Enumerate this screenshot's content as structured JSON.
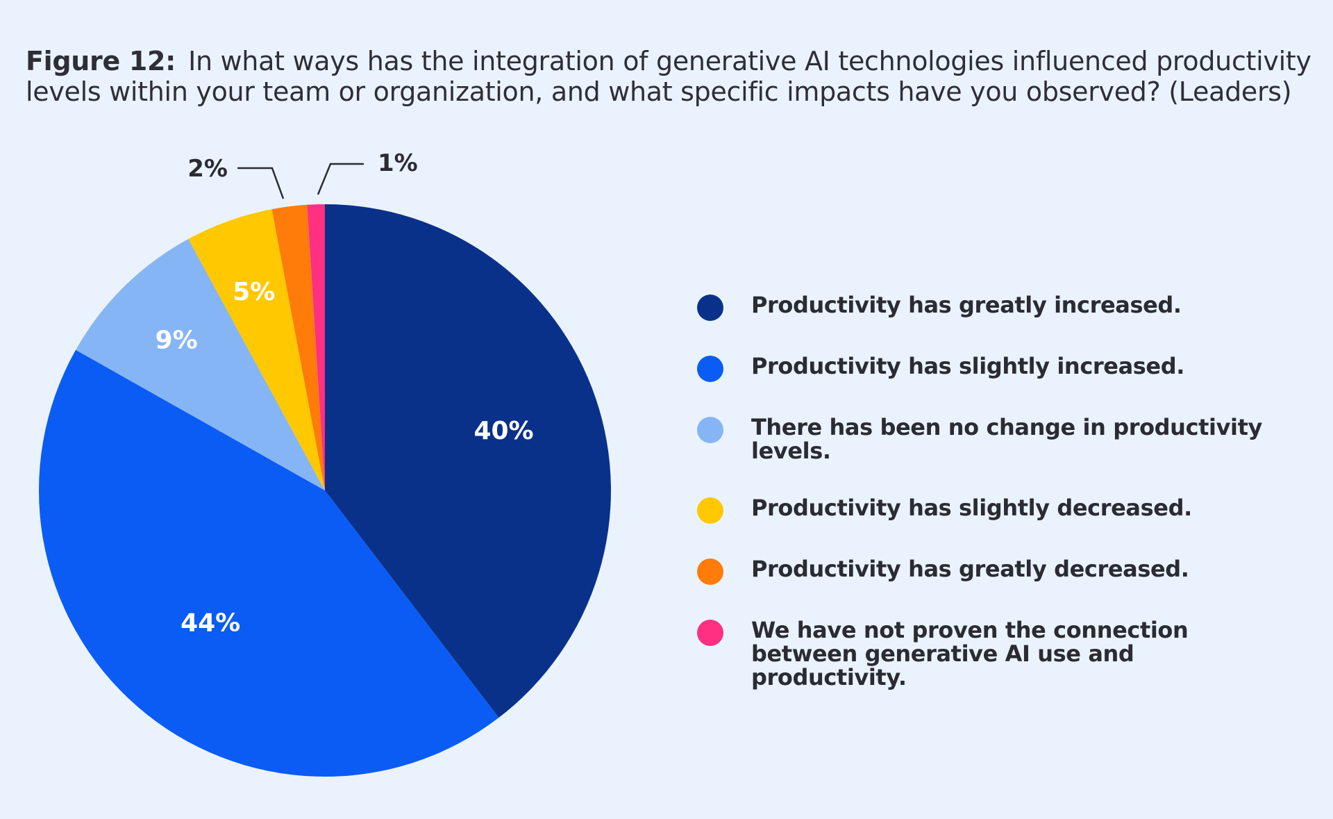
{
  "title": {
    "label": "Figure 12:",
    "text": "In what ways has the integration of generative AI technologies influenced productivity levels within your team or organization, and what specific impacts have you observed? (Leaders)"
  },
  "chart_data": {
    "type": "pie",
    "title": "Figure 12: In what ways has the integration of generative AI technologies influenced productivity levels within your team or organization, and what specific impacts have you observed? (Leaders)",
    "legend_position": "right",
    "slices": [
      {
        "label": "Productivity has greatly increased.",
        "value": 40,
        "display": "40%",
        "color": "#0a318a",
        "label_color": "#ffffff"
      },
      {
        "label": "Productivity has slightly increased.",
        "value": 44,
        "display": "44%",
        "color": "#0b5cf5",
        "label_color": "#ffffff"
      },
      {
        "label": "There has been no change in productivity levels.",
        "value": 9,
        "display": "9%",
        "color": "#86b5f5",
        "label_color": "#ffffff"
      },
      {
        "label": "Productivity has slightly decreased.",
        "value": 5,
        "display": "5%",
        "color": "#ffc801",
        "label_color": "#ffffff"
      },
      {
        "label": "Productivity has greatly decreased.",
        "value": 2,
        "display": "2%",
        "color": "#ff7b0a",
        "label_color": "#2b2b33"
      },
      {
        "label": "We have not proven the connection between generative AI use and productivity.",
        "value": 1,
        "display": "1%",
        "color": "#ff2f82",
        "label_color": "#2b2b33"
      }
    ]
  }
}
